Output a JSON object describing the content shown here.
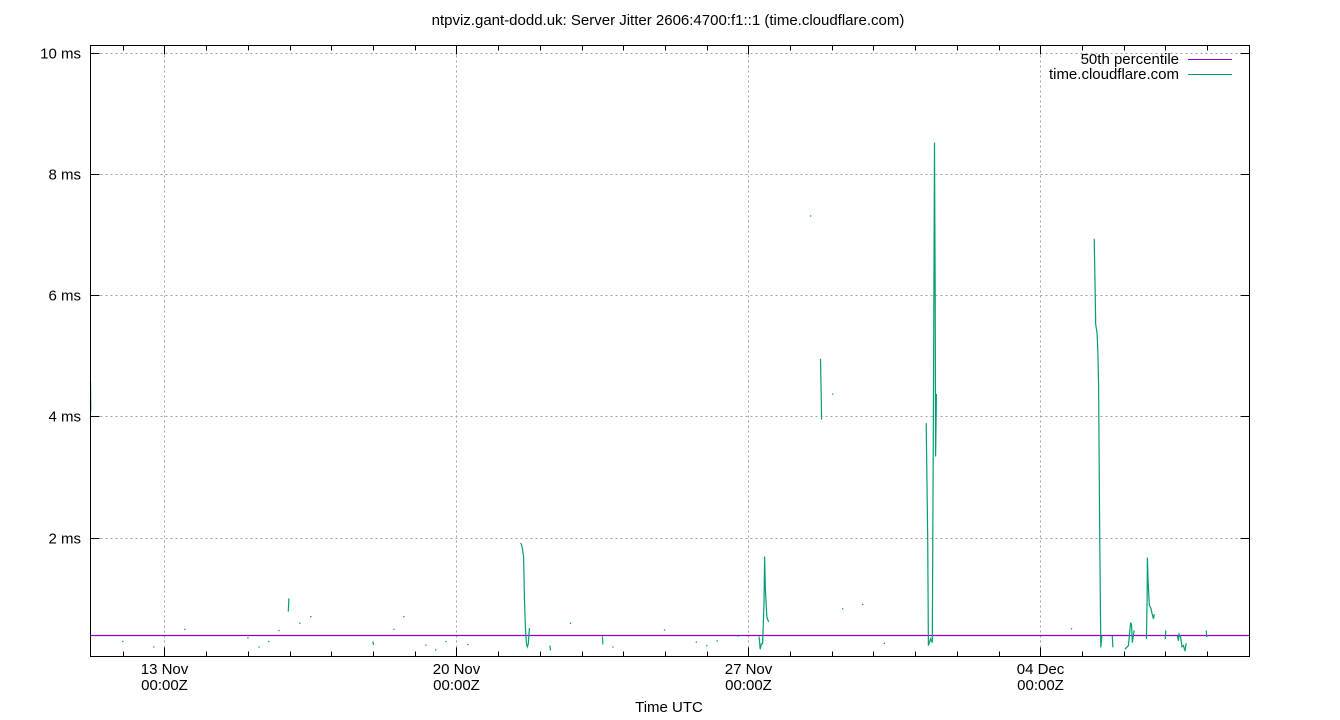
{
  "chart_data": {
    "type": "line",
    "title": "ntpviz.gant-dodd.uk: Server Jitter 2606:4700:f1::1 (time.cloudflare.com)",
    "xlabel": "Time UTC",
    "ylabel": "",
    "xlim": [
      "11-11 05:30",
      "12-09 00:20"
    ],
    "ylim": [
      0.04,
      10.12
    ],
    "x_ticks": [
      {
        "t": "11-13 00:00",
        "label1": "13 Nov",
        "label2": "00:00Z"
      },
      {
        "t": "11-20 00:00",
        "label1": "20 Nov",
        "label2": "00:00Z"
      },
      {
        "t": "11-27 00:00",
        "label1": "27 Nov",
        "label2": "00:00Z"
      },
      {
        "t": "12-04 00:00",
        "label1": "04 Dec",
        "label2": "00:00Z"
      }
    ],
    "x_minor_tick_interval": "1 day",
    "y_ticks": [
      {
        "v": 2,
        "label": "2 ms"
      },
      {
        "v": 4,
        "label": "4 ms"
      },
      {
        "v": 6,
        "label": "6 ms"
      },
      {
        "v": 8,
        "label": "8 ms"
      },
      {
        "v": 10,
        "label": "10 ms"
      }
    ],
    "grid": true,
    "legend_position": "top-right",
    "colors": {
      "percentile": "#9400d3",
      "series": "#009e73",
      "grid": "#a0a0a0"
    },
    "series": [
      {
        "name": "50th percentile",
        "kind": "hline",
        "value": 0.39
      },
      {
        "name": "time.cloudflare.com",
        "kind": "segments",
        "segments": [
          [
            [
              "11-11 05:30",
              4.58
            ],
            [
              "11-11 05:40",
              4.09
            ]
          ],
          [
            [
              "11-12 00:00",
              0.29
            ]
          ],
          [
            [
              "11-12 17:50",
              0.2
            ]
          ],
          [
            [
              "11-13 11:40",
              0.49
            ]
          ],
          [
            [
              "11-15 00:00",
              0.35
            ]
          ],
          [
            [
              "11-15 06:20",
              0.2
            ]
          ],
          [
            [
              "11-15 12:00",
              0.29
            ]
          ],
          [
            [
              "11-15 17:50",
              0.47
            ]
          ],
          [
            [
              "11-15 23:20",
              0.78
            ],
            [
              "11-15 23:40",
              1.0
            ]
          ],
          [
            [
              "11-16 05:50",
              0.59
            ]
          ],
          [
            [
              "11-16 12:10",
              0.7
            ]
          ],
          [
            [
              "11-18 00:00",
              0.29
            ],
            [
              "11-18 00:20",
              0.23
            ]
          ],
          [
            [
              "11-18 12:00",
              0.49
            ]
          ],
          [
            [
              "11-18 17:40",
              0.7
            ]
          ],
          [
            [
              "11-19 06:25",
              0.23
            ]
          ],
          [
            [
              "11-19 12:00",
              0.15
            ]
          ],
          [
            [
              "11-19 17:55",
              0.29
            ]
          ],
          [
            [
              "11-20 06:30",
              0.24
            ]
          ],
          [
            [
              "11-21 12:55",
              1.91
            ],
            [
              "11-21 13:30",
              1.89
            ],
            [
              "11-21 14:05",
              1.8
            ],
            [
              "11-21 14:40",
              1.69
            ],
            [
              "11-21 15:10",
              1.02
            ],
            [
              "11-21 15:45",
              0.47
            ],
            [
              "11-21 16:20",
              0.25
            ],
            [
              "11-21 16:50",
              0.2
            ],
            [
              "11-21 17:25",
              0.25
            ],
            [
              "11-21 18:00",
              0.51
            ]
          ],
          [
            [
              "11-22 05:50",
              0.22
            ],
            [
              "11-22 06:10",
              0.14
            ]
          ],
          [
            [
              "11-22 17:35",
              0.59
            ]
          ],
          [
            [
              "11-23 12:00",
              0.37
            ],
            [
              "11-23 12:20",
              0.24
            ]
          ],
          [
            [
              "11-23 18:00",
              0.2
            ]
          ],
          [
            [
              "11-24 23:40",
              0.48
            ]
          ],
          [
            [
              "11-25 18:00",
              0.28
            ]
          ],
          [
            [
              "11-26 00:00",
              0.22
            ]
          ],
          [
            [
              "11-26 06:00",
              0.3
            ]
          ],
          [
            [
              "11-26 17:50",
              0.38
            ]
          ],
          [
            [
              "11-27 06:10",
              0.37
            ],
            [
              "11-27 06:50",
              0.16
            ],
            [
              "11-27 07:30",
              0.25
            ],
            [
              "11-27 08:10",
              0.25
            ],
            [
              "11-27 09:00",
              0.91
            ],
            [
              "11-27 09:20",
              1.69
            ],
            [
              "11-27 09:50",
              1.13
            ],
            [
              "11-27 10:40",
              0.69
            ],
            [
              "11-27 11:40",
              0.61
            ]
          ],
          [
            [
              "11-28 11:45",
              7.31
            ]
          ],
          [
            [
              "11-28 17:30",
              4.95
            ],
            [
              "11-28 17:50",
              4.44
            ],
            [
              "11-28 18:10",
              3.95
            ]
          ],
          [
            [
              "11-29 00:30",
              4.37
            ]
          ],
          [
            [
              "11-29 06:10",
              0.83
            ]
          ],
          [
            [
              "11-29 17:40",
              0.9
            ]
          ],
          [
            [
              "11-30 06:10",
              0.26
            ]
          ],
          [
            [
              "12-01 06:20",
              3.89
            ],
            [
              "12-01 07:10",
              2.0
            ],
            [
              "12-01 07:35",
              0.22
            ],
            [
              "12-01 08:10",
              0.27
            ],
            [
              "12-01 08:50",
              0.33
            ],
            [
              "12-01 09:50",
              0.27
            ],
            [
              "12-01 10:30",
              4.37
            ],
            [
              "12-01 11:05",
              8.52
            ],
            [
              "12-01 11:30",
              5.93
            ],
            [
              "12-01 11:45",
              3.34
            ],
            [
              "12-01 12:10",
              4.37
            ]
          ],
          [
            [
              "12-04 17:50",
              0.5
            ]
          ],
          [
            [
              "12-05 07:00",
              6.93
            ],
            [
              "12-05 07:25",
              6.22
            ],
            [
              "12-05 07:50",
              5.52
            ],
            [
              "12-05 08:40",
              5.37
            ],
            [
              "12-05 09:05",
              5.04
            ],
            [
              "12-05 09:30",
              4.51
            ],
            [
              "12-05 10:05",
              2.25
            ],
            [
              "12-05 10:45",
              0.19
            ],
            [
              "12-05 11:20",
              0.38
            ]
          ],
          [
            [
              "12-05 17:25",
              0.38
            ],
            [
              "12-05 17:45",
              0.19
            ]
          ],
          [
            [
              "12-06 00:40",
              0.16
            ],
            [
              "12-06 02:40",
              0.22
            ],
            [
              "12-06 03:55",
              0.6
            ],
            [
              "12-06 04:30",
              0.56
            ],
            [
              "12-06 04:55",
              0.27
            ],
            [
              "12-06 06:00",
              0.47
            ]
          ],
          [
            [
              "12-06 13:00",
              0.33
            ],
            [
              "12-06 13:25",
              0.97
            ],
            [
              "12-06 13:35",
              1.67
            ],
            [
              "12-06 14:00",
              1.28
            ],
            [
              "12-06 14:40",
              0.89
            ],
            [
              "12-06 15:40",
              0.83
            ],
            [
              "12-06 16:15",
              0.75
            ],
            [
              "12-06 17:05",
              0.66
            ],
            [
              "12-06 17:30",
              0.74
            ]
          ],
          [
            [
              "12-06 23:50",
              0.33
            ],
            [
              "12-07 00:10",
              0.47
            ]
          ],
          [
            [
              "12-07 06:50",
              0.38
            ],
            [
              "12-07 07:25",
              0.3
            ],
            [
              "12-07 07:50",
              0.41
            ],
            [
              "12-07 08:40",
              0.36
            ],
            [
              "12-07 09:30",
              0.2
            ],
            [
              "12-07 10:20",
              0.22
            ],
            [
              "12-07 11:10",
              0.13
            ],
            [
              "12-07 11:55",
              0.26
            ]
          ],
          [
            [
              "12-07 23:25",
              0.47
            ],
            [
              "12-07 23:45",
              0.36
            ]
          ]
        ]
      }
    ]
  }
}
